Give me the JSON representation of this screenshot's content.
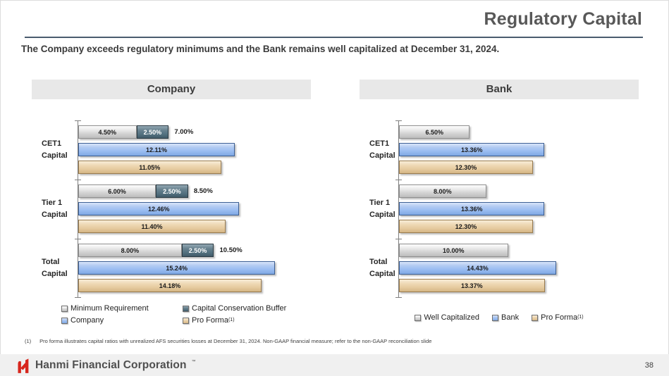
{
  "slide": {
    "title": "Regulatory Capital",
    "subtitle": "The Company exceeds regulatory minimums and the Bank remains well capitalized at December 31, 2024.",
    "footnote_marker": "(1)",
    "footnote_text": "Pro forma illustrates capital ratios with unrealized AFS securities losses at December 31, 2024. Non-GAAP financial measure; refer to the non-GAAP reconciliation slide",
    "footer_brand": "Hanmi Financial Corporation",
    "footer_trademark": "™",
    "page_number": "38"
  },
  "colors": {
    "accent_rule": "#4a5c6e",
    "bar_gray": "#d9d9d9",
    "bar_dark_slate": "#5e7a8a",
    "bar_blue": "#a9c5ef",
    "bar_tan": "#ecd4ad",
    "brand_red": "#d7261d",
    "panel_header_bg": "#e8e8e8"
  },
  "chart_data": [
    {
      "type": "bar",
      "orientation": "horizontal",
      "title": "Company",
      "xlim": [
        0,
        18
      ],
      "grid": false,
      "legend_position": "bottom",
      "categories": [
        "CET1 Capital",
        "Tier 1 Capital",
        "Total Capital"
      ],
      "category_label_lines": [
        [
          "CET1",
          "Capital"
        ],
        [
          "Tier 1",
          "Capital"
        ],
        [
          "Total",
          "Capital"
        ]
      ],
      "rows": [
        {
          "category": "CET1 Capital",
          "bars": [
            {
              "kind": "stack",
              "total_value": 7.0,
              "total_label": "7.00%",
              "segments": [
                {
                  "series": "Minimum Requirement",
                  "color_key": "gray",
                  "value": 4.5,
                  "label": "4.50%"
                },
                {
                  "series": "Capital Conservation Buffer",
                  "color_key": "dark",
                  "value": 2.5,
                  "label": "2.50%"
                }
              ]
            },
            {
              "kind": "single",
              "series": "Company",
              "color_key": "blue",
              "value": 12.11,
              "label": "12.11%"
            },
            {
              "kind": "single",
              "series": "Pro Forma",
              "color_key": "tan",
              "value": 11.05,
              "label": "11.05%"
            }
          ]
        },
        {
          "category": "Tier 1 Capital",
          "bars": [
            {
              "kind": "stack",
              "total_value": 8.5,
              "total_label": "8.50%",
              "segments": [
                {
                  "series": "Minimum Requirement",
                  "color_key": "gray",
                  "value": 6.0,
                  "label": "6.00%"
                },
                {
                  "series": "Capital Conservation Buffer",
                  "color_key": "dark",
                  "value": 2.5,
                  "label": "2.50%"
                }
              ]
            },
            {
              "kind": "single",
              "series": "Company",
              "color_key": "blue",
              "value": 12.46,
              "label": "12.46%"
            },
            {
              "kind": "single",
              "series": "Pro Forma",
              "color_key": "tan",
              "value": 11.4,
              "label": "11.40%"
            }
          ]
        },
        {
          "category": "Total Capital",
          "bars": [
            {
              "kind": "stack",
              "total_value": 10.5,
              "total_label": "10.50%",
              "segments": [
                {
                  "series": "Minimum Requirement",
                  "color_key": "gray",
                  "value": 8.0,
                  "label": "8.00%"
                },
                {
                  "series": "Capital Conservation Buffer",
                  "color_key": "dark",
                  "value": 2.5,
                  "label": "2.50%"
                }
              ]
            },
            {
              "kind": "single",
              "series": "Company",
              "color_key": "blue",
              "value": 15.24,
              "label": "15.24%"
            },
            {
              "kind": "single",
              "series": "Pro Forma",
              "color_key": "tan",
              "value": 14.18,
              "label": "14.18%"
            }
          ]
        }
      ],
      "legend": {
        "layout": "two-column",
        "items": [
          {
            "label": "Minimum Requirement",
            "color_key": "gray"
          },
          {
            "label": "Capital Conservation Buffer",
            "color_key": "dark"
          },
          {
            "label": "Company",
            "color_key": "blue"
          },
          {
            "label": "Pro Forma",
            "superscript": "(1)",
            "color_key": "tan"
          }
        ]
      }
    },
    {
      "type": "bar",
      "orientation": "horizontal",
      "title": "Bank",
      "xlim": [
        0,
        22
      ],
      "grid": false,
      "legend_position": "bottom",
      "categories": [
        "CET1 Capital",
        "Tier 1 Capital",
        "Total Capital"
      ],
      "category_label_lines": [
        [
          "CET1",
          "Capital"
        ],
        [
          "Tier 1",
          "Capital"
        ],
        [
          "Total",
          "Capital"
        ]
      ],
      "rows": [
        {
          "category": "CET1 Capital",
          "bars": [
            {
              "kind": "single",
              "series": "Well Capitalized",
              "color_key": "gray",
              "value": 6.5,
              "label": "6.50%"
            },
            {
              "kind": "single",
              "series": "Bank",
              "color_key": "blue",
              "value": 13.36,
              "label": "13.36%"
            },
            {
              "kind": "single",
              "series": "Pro Forma",
              "color_key": "tan",
              "value": 12.3,
              "label": "12.30%"
            }
          ]
        },
        {
          "category": "Tier 1 Capital",
          "bars": [
            {
              "kind": "single",
              "series": "Well Capitalized",
              "color_key": "gray",
              "value": 8.0,
              "label": "8.00%"
            },
            {
              "kind": "single",
              "series": "Bank",
              "color_key": "blue",
              "value": 13.36,
              "label": "13.36%"
            },
            {
              "kind": "single",
              "series": "Pro Forma",
              "color_key": "tan",
              "value": 12.3,
              "label": "12.30%"
            }
          ]
        },
        {
          "category": "Total Capital",
          "bars": [
            {
              "kind": "single",
              "series": "Well Capitalized",
              "color_key": "gray",
              "value": 10.0,
              "label": "10.00%"
            },
            {
              "kind": "single",
              "series": "Bank",
              "color_key": "blue",
              "value": 14.43,
              "label": "14.43%"
            },
            {
              "kind": "single",
              "series": "Pro Forma",
              "color_key": "tan",
              "value": 13.37,
              "label": "13.37%"
            }
          ]
        }
      ],
      "legend": {
        "layout": "single-row",
        "items": [
          {
            "label": "Well Capitalized",
            "color_key": "gray"
          },
          {
            "label": "Bank",
            "color_key": "blue"
          },
          {
            "label": "Pro Forma",
            "superscript": "(1)",
            "color_key": "tan"
          }
        ]
      }
    }
  ]
}
